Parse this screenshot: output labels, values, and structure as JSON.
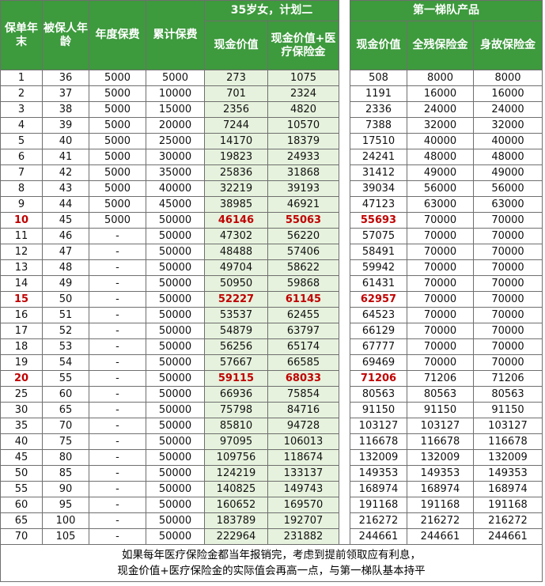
{
  "header": {
    "year_end": "保单年末",
    "insured_age": "被保人年龄",
    "annual_premium": "年度保费",
    "cumulative_premium": "累计保费",
    "plan_group": "35岁女，计划二",
    "plan_cash_value": "现金价值",
    "plan_cash_plus_medical": "现金价值+医疗保险金",
    "tier_group": "第一梯队产品",
    "tier_cash_value": "现金价值",
    "tier_disability": "全残保险金",
    "tier_death": "身故保险金"
  },
  "rows": [
    {
      "year": "1",
      "age": "36",
      "annual": "5000",
      "cum": "5000",
      "cv": "273",
      "cvm": "1075",
      "t_cv": "508",
      "t_dis": "8000",
      "t_death": "8000",
      "highlight": false
    },
    {
      "year": "2",
      "age": "37",
      "annual": "5000",
      "cum": "10000",
      "cv": "701",
      "cvm": "2324",
      "t_cv": "1191",
      "t_dis": "16000",
      "t_death": "16000",
      "highlight": false
    },
    {
      "year": "3",
      "age": "38",
      "annual": "5000",
      "cum": "15000",
      "cv": "2356",
      "cvm": "4820",
      "t_cv": "2336",
      "t_dis": "24000",
      "t_death": "24000",
      "highlight": false
    },
    {
      "year": "4",
      "age": "39",
      "annual": "5000",
      "cum": "20000",
      "cv": "7244",
      "cvm": "10570",
      "t_cv": "7388",
      "t_dis": "32000",
      "t_death": "32000",
      "highlight": false
    },
    {
      "year": "5",
      "age": "40",
      "annual": "5000",
      "cum": "25000",
      "cv": "14170",
      "cvm": "18379",
      "t_cv": "17510",
      "t_dis": "40000",
      "t_death": "40000",
      "highlight": false
    },
    {
      "year": "6",
      "age": "41",
      "annual": "5000",
      "cum": "30000",
      "cv": "19823",
      "cvm": "24933",
      "t_cv": "24241",
      "t_dis": "48000",
      "t_death": "48000",
      "highlight": false
    },
    {
      "year": "7",
      "age": "42",
      "annual": "5000",
      "cum": "35000",
      "cv": "25836",
      "cvm": "31868",
      "t_cv": "31412",
      "t_dis": "49000",
      "t_death": "49000",
      "highlight": false
    },
    {
      "year": "8",
      "age": "43",
      "annual": "5000",
      "cum": "40000",
      "cv": "32219",
      "cvm": "39193",
      "t_cv": "39034",
      "t_dis": "56000",
      "t_death": "56000",
      "highlight": false
    },
    {
      "year": "9",
      "age": "44",
      "annual": "5000",
      "cum": "45000",
      "cv": "38985",
      "cvm": "46921",
      "t_cv": "47123",
      "t_dis": "63000",
      "t_death": "63000",
      "highlight": false
    },
    {
      "year": "10",
      "age": "45",
      "annual": "5000",
      "cum": "50000",
      "cv": "46146",
      "cvm": "55063",
      "t_cv": "55693",
      "t_dis": "70000",
      "t_death": "70000",
      "highlight": true
    },
    {
      "year": "11",
      "age": "46",
      "annual": "-",
      "cum": "50000",
      "cv": "47302",
      "cvm": "56220",
      "t_cv": "57075",
      "t_dis": "70000",
      "t_death": "70000",
      "highlight": false
    },
    {
      "year": "12",
      "age": "47",
      "annual": "-",
      "cum": "50000",
      "cv": "48488",
      "cvm": "57406",
      "t_cv": "58491",
      "t_dis": "70000",
      "t_death": "70000",
      "highlight": false
    },
    {
      "year": "13",
      "age": "48",
      "annual": "-",
      "cum": "50000",
      "cv": "49704",
      "cvm": "58622",
      "t_cv": "59942",
      "t_dis": "70000",
      "t_death": "70000",
      "highlight": false
    },
    {
      "year": "14",
      "age": "49",
      "annual": "-",
      "cum": "50000",
      "cv": "50950",
      "cvm": "59868",
      "t_cv": "61431",
      "t_dis": "70000",
      "t_death": "70000",
      "highlight": false
    },
    {
      "year": "15",
      "age": "50",
      "annual": "-",
      "cum": "50000",
      "cv": "52227",
      "cvm": "61145",
      "t_cv": "62957",
      "t_dis": "70000",
      "t_death": "70000",
      "highlight": true
    },
    {
      "year": "16",
      "age": "51",
      "annual": "-",
      "cum": "50000",
      "cv": "53537",
      "cvm": "62455",
      "t_cv": "64523",
      "t_dis": "70000",
      "t_death": "70000",
      "highlight": false
    },
    {
      "year": "17",
      "age": "52",
      "annual": "-",
      "cum": "50000",
      "cv": "54879",
      "cvm": "63797",
      "t_cv": "66129",
      "t_dis": "70000",
      "t_death": "70000",
      "highlight": false
    },
    {
      "year": "18",
      "age": "53",
      "annual": "-",
      "cum": "50000",
      "cv": "56256",
      "cvm": "65174",
      "t_cv": "67777",
      "t_dis": "70000",
      "t_death": "70000",
      "highlight": false
    },
    {
      "year": "19",
      "age": "54",
      "annual": "-",
      "cum": "50000",
      "cv": "57667",
      "cvm": "66585",
      "t_cv": "69469",
      "t_dis": "70000",
      "t_death": "70000",
      "highlight": false
    },
    {
      "year": "20",
      "age": "55",
      "annual": "-",
      "cum": "50000",
      "cv": "59115",
      "cvm": "68033",
      "t_cv": "71206",
      "t_dis": "71206",
      "t_death": "71206",
      "highlight": true
    },
    {
      "year": "25",
      "age": "60",
      "annual": "-",
      "cum": "50000",
      "cv": "66936",
      "cvm": "75854",
      "t_cv": "80563",
      "t_dis": "80563",
      "t_death": "80563",
      "highlight": false
    },
    {
      "year": "30",
      "age": "65",
      "annual": "-",
      "cum": "50000",
      "cv": "75798",
      "cvm": "84716",
      "t_cv": "91150",
      "t_dis": "91150",
      "t_death": "91150",
      "highlight": false
    },
    {
      "year": "35",
      "age": "70",
      "annual": "-",
      "cum": "50000",
      "cv": "85810",
      "cvm": "94728",
      "t_cv": "103127",
      "t_dis": "103127",
      "t_death": "103127",
      "highlight": false
    },
    {
      "year": "40",
      "age": "75",
      "annual": "-",
      "cum": "50000",
      "cv": "97095",
      "cvm": "106013",
      "t_cv": "116678",
      "t_dis": "116678",
      "t_death": "116678",
      "highlight": false
    },
    {
      "year": "45",
      "age": "80",
      "annual": "-",
      "cum": "50000",
      "cv": "109756",
      "cvm": "118674",
      "t_cv": "132009",
      "t_dis": "132009",
      "t_death": "132009",
      "highlight": false
    },
    {
      "year": "50",
      "age": "85",
      "annual": "-",
      "cum": "50000",
      "cv": "124219",
      "cvm": "133137",
      "t_cv": "149353",
      "t_dis": "149353",
      "t_death": "149353",
      "highlight": false
    },
    {
      "year": "55",
      "age": "90",
      "annual": "-",
      "cum": "50000",
      "cv": "140825",
      "cvm": "149743",
      "t_cv": "168974",
      "t_dis": "168974",
      "t_death": "168974",
      "highlight": false
    },
    {
      "year": "60",
      "age": "95",
      "annual": "-",
      "cum": "50000",
      "cv": "160652",
      "cvm": "169570",
      "t_cv": "191168",
      "t_dis": "191168",
      "t_death": "191168",
      "highlight": false
    },
    {
      "year": "65",
      "age": "100",
      "annual": "-",
      "cum": "50000",
      "cv": "183789",
      "cvm": "192707",
      "t_cv": "216272",
      "t_dis": "216272",
      "t_death": "216272",
      "highlight": false
    },
    {
      "year": "70",
      "age": "105",
      "annual": "-",
      "cum": "50000",
      "cv": "222964",
      "cvm": "231882",
      "t_cv": "244661",
      "t_dis": "244661",
      "t_death": "244661",
      "highlight": false
    }
  ],
  "note": {
    "line1": "如果每年医疗保险金都当年报销完，考虑到提前领取应有利息，",
    "line2": "现金价值+医疗保险金的实际值会再高一点，与第一梯队基本持平"
  },
  "colors": {
    "header_bg": "#3d9a3d",
    "shade_bg": "#e6f2dd",
    "highlight_text": "#c00000"
  }
}
